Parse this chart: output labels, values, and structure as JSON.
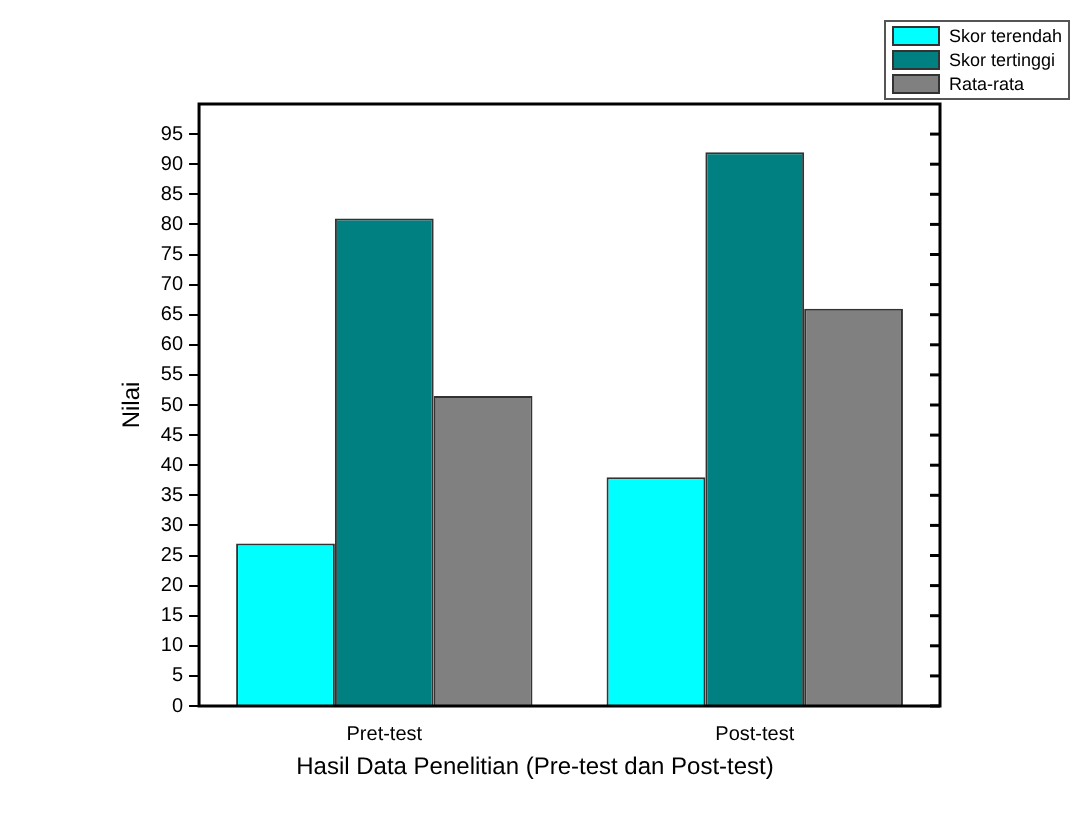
{
  "chart_data": {
    "type": "bar",
    "xlabel": "Hasil Data Penelitian (Pre-test dan Post-test)",
    "ylabel": "Nilai",
    "categories": [
      "Pret-test",
      "Post-test"
    ],
    "series": [
      {
        "name": "Skor terendah",
        "color": "#00ffff",
        "values": [
          27,
          38
        ]
      },
      {
        "name": "Skor tertinggi",
        "color": "#008080",
        "values": [
          81,
          92
        ]
      },
      {
        "name": "Rata-rata",
        "color": "#808080",
        "values": [
          51.5,
          66
        ]
      }
    ],
    "ylim": [
      0,
      100
    ],
    "yticks": [
      0,
      5,
      10,
      15,
      20,
      25,
      30,
      35,
      40,
      45,
      50,
      55,
      60,
      65,
      70,
      75,
      80,
      85,
      90,
      95
    ],
    "grid": false,
    "legend": "top right"
  }
}
